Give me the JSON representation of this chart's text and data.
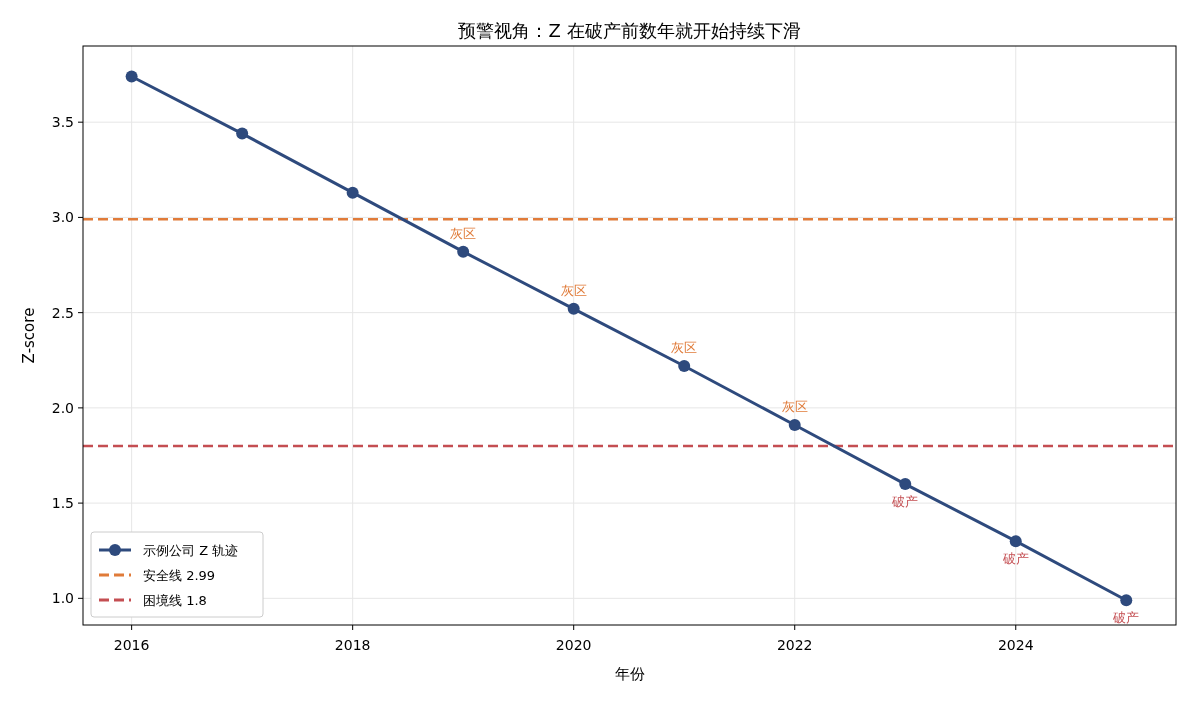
{
  "chart_data": {
    "type": "line",
    "title": "预警视角：Z 在破产前数年就开始持续下滑",
    "xlabel": "年份",
    "ylabel": "Z-score",
    "x": [
      2016,
      2017,
      2018,
      2019,
      2020,
      2021,
      2022,
      2023,
      2024,
      2025
    ],
    "series": [
      {
        "name": "示例公司 Z 轨迹",
        "color": "#2e4a7d",
        "values": [
          3.74,
          3.44,
          3.13,
          2.82,
          2.52,
          2.22,
          1.91,
          1.6,
          1.3,
          0.99
        ]
      }
    ],
    "ref_lines": [
      {
        "axis": "y",
        "value": 2.99,
        "label": "安全线 2.99",
        "color": "#e07b39",
        "line_style": "dashed"
      },
      {
        "axis": "y",
        "value": 1.8,
        "label": "困境线 1.8",
        "color": "#c44e52",
        "line_style": "dashed"
      }
    ],
    "annotations": [
      {
        "text": "灰区",
        "x": 2019,
        "y": 2.82
      },
      {
        "text": "灰区",
        "x": 2020,
        "y": 2.52
      },
      {
        "text": "灰区",
        "x": 2021,
        "y": 2.22
      },
      {
        "text": "灰区",
        "x": 2022,
        "y": 1.91
      },
      {
        "text": "破产",
        "x": 2023,
        "y": 1.6
      },
      {
        "text": "破产",
        "x": 2024,
        "y": 1.3
      },
      {
        "text": "破产",
        "x": 2025,
        "y": 0.99
      }
    ],
    "xlim": [
      2015.56,
      2025.45
    ],
    "ylim": [
      0.86,
      3.9
    ],
    "xticks": [
      2016,
      2018,
      2020,
      2022,
      2024
    ],
    "yticks": [
      {
        "value": 1,
        "label": "1.0"
      },
      1.5,
      {
        "value": 2,
        "label": "2.0"
      },
      2.5,
      {
        "value": 3,
        "label": "3.0"
      },
      3.5
    ],
    "grid": true,
    "legend": "bottom left",
    "marker": "circle",
    "line_style": "solid"
  }
}
